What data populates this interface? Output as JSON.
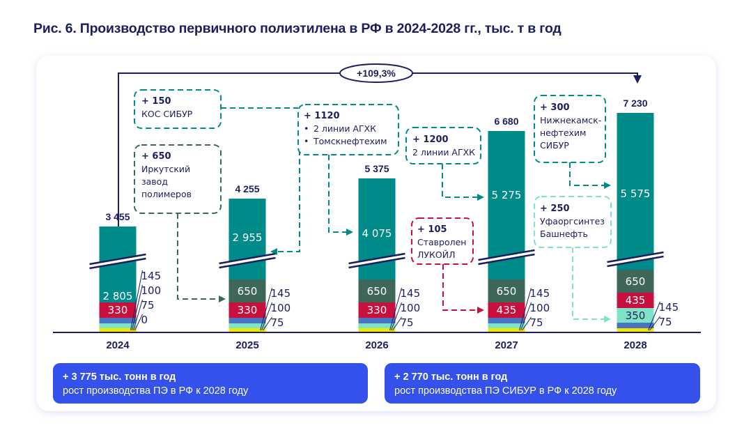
{
  "title": "Рис. 6. Производство первичного полиэтилена в РФ в 2024-2028 гг., тыс. т в год",
  "growth_badge": "+109,3%",
  "colors": {
    "teal": "#008b8b",
    "darkgreen": "#3e6659",
    "crimson": "#c8103e",
    "mint": "#7fe3c7",
    "blue": "#4c74c4",
    "yellow": "#f2e600",
    "navy": "#1b1f5e",
    "summary_bg": "#3451ec"
  },
  "chart_data": {
    "type": "bar",
    "stacked": true,
    "axis_broken": true,
    "categories": [
      "2024",
      "2025",
      "2026",
      "2027",
      "2028"
    ],
    "totals": [
      "3 455",
      "4 255",
      "5 375",
      "6 680",
      "7 230"
    ],
    "series": [
      {
        "name": "base",
        "color": "#008b8b",
        "values": [
          2805,
          2955,
          4075,
          5275,
          5575
        ],
        "labels": [
          "2 805",
          "2 955",
          "4 075",
          "5 275",
          "5 575"
        ]
      },
      {
        "name": "Иркутский завод полимеров",
        "color": "#3e6659",
        "values": [
          0,
          650,
          650,
          650,
          650
        ],
        "labels": [
          "",
          "650",
          "650",
          "650",
          "650"
        ]
      },
      {
        "name": "crimson",
        "color": "#c8103e",
        "values": [
          330,
          330,
          330,
          435,
          435
        ],
        "labels": [
          "330",
          "330",
          "330",
          "435",
          "435"
        ]
      },
      {
        "name": "Уфаоргсинтез",
        "color": "#7fe3c7",
        "values": [
          0,
          0,
          0,
          0,
          350
        ],
        "labels": [
          "",
          "",
          "",
          "",
          "350"
        ]
      },
      {
        "name": "small-145",
        "color": "#4c74c4",
        "values": [
          145,
          145,
          145,
          145,
          145
        ]
      },
      {
        "name": "small-100",
        "color": "#7fe3c7",
        "values": [
          100,
          100,
          100,
          100,
          0
        ]
      },
      {
        "name": "small-75",
        "color": "#f2e600",
        "values": [
          75,
          75,
          75,
          75,
          75
        ]
      }
    ],
    "side_labels": [
      [
        "145",
        "100",
        "75",
        "0"
      ],
      [
        "145",
        "100",
        "75"
      ],
      [
        "145",
        "100",
        "75"
      ],
      [
        "145",
        "100",
        "75"
      ],
      [
        "145",
        "75"
      ]
    ]
  },
  "annotations": [
    {
      "value": "+ 150",
      "lines": [
        "КОС СИБУР"
      ]
    },
    {
      "value": "+ 650",
      "lines": [
        "Иркутский",
        "завод",
        "полимеров"
      ]
    },
    {
      "value": "+ 1120",
      "bullets": [
        "2 линии АГХК",
        "Томскнефтехим"
      ]
    },
    {
      "value": "+ 1200",
      "lines": [
        "2 линии АГХК"
      ]
    },
    {
      "value": "+ 105",
      "lines": [
        "Ставролен",
        "ЛУКОЙЛ"
      ]
    },
    {
      "value": "+ 300",
      "lines": [
        "Нижнекамск-",
        "нефтехим",
        "СИБУР"
      ]
    },
    {
      "value": "+ 250",
      "lines": [
        "Уфаоргсинтез",
        "Башнефть"
      ]
    }
  ],
  "summary": [
    {
      "headline": "+ 3 775 тыс. тонн в год",
      "text": "рост производства ПЭ в РФ к 2028 году"
    },
    {
      "headline": "+ 2 770 тыс. тонн в год",
      "text": "рост производства ПЭ СИБУР в РФ к 2028 году"
    }
  ]
}
